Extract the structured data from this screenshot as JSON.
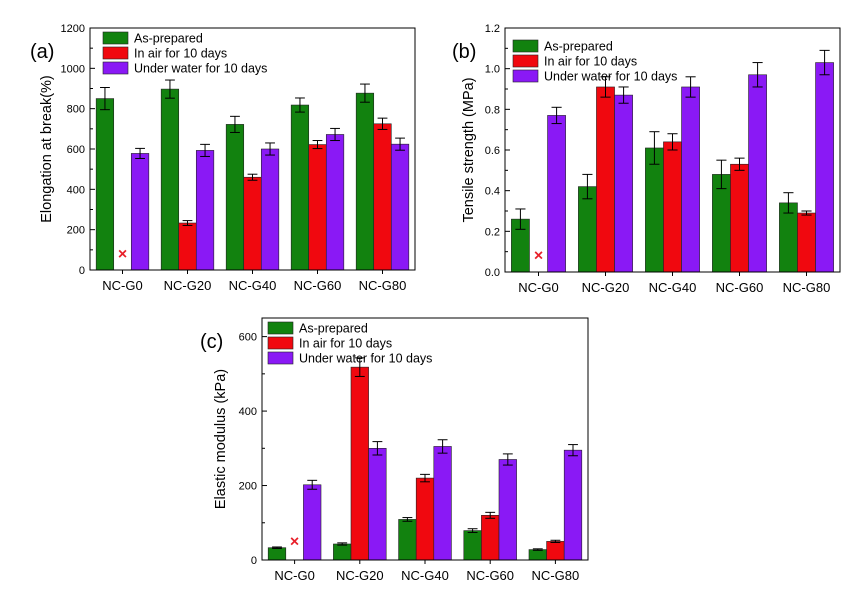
{
  "colors": {
    "as_prepared": "#12820f",
    "in_air": "#f0080f",
    "under_water": "#8a19f5",
    "missing_marker": "#e8202a"
  },
  "legend": [
    "As-prepared",
    "In air for 10 days",
    "Under water for 10 days"
  ],
  "missing_marker_symbol": "×",
  "chart_data": [
    {
      "type": "bar",
      "panel_label": "(a)",
      "ylabel": "Elongation at break(%)",
      "xlabel": "",
      "categories": [
        "NC-G0",
        "NC-G20",
        "NC-G40",
        "NC-G60",
        "NC-G80"
      ],
      "ylim": [
        0,
        1200
      ],
      "yticks": [
        0,
        200,
        400,
        600,
        800,
        1000,
        1200
      ],
      "tick_decimals": 0,
      "legend_position": "top-left",
      "series": [
        {
          "name": "As-prepared",
          "values": [
            850,
            897,
            722,
            818,
            877
          ],
          "errors": [
            55,
            45,
            40,
            35,
            45
          ]
        },
        {
          "name": "In air for 10 days",
          "values": [
            null,
            233,
            460,
            622,
            725
          ],
          "errors": [
            null,
            12,
            15,
            20,
            28
          ]
        },
        {
          "name": "Under water for 10 days",
          "values": [
            578,
            593,
            600,
            672,
            624
          ],
          "errors": [
            25,
            30,
            30,
            30,
            30
          ]
        }
      ],
      "missing_markers": [
        {
          "series": 1,
          "category": 0,
          "y": 80
        }
      ]
    },
    {
      "type": "bar",
      "panel_label": "(b)",
      "ylabel": "Tensile strength (MPa)",
      "xlabel": "",
      "categories": [
        "NC-G0",
        "NC-G20",
        "NC-G40",
        "NC-G60",
        "NC-G80"
      ],
      "ylim": [
        0,
        1.2
      ],
      "yticks": [
        0.0,
        0.2,
        0.4,
        0.6,
        0.8,
        1.0,
        1.2
      ],
      "tick_decimals": 1,
      "legend_position": "top-left",
      "series": [
        {
          "name": "As-prepared",
          "values": [
            0.26,
            0.42,
            0.61,
            0.48,
            0.34
          ],
          "errors": [
            0.05,
            0.06,
            0.08,
            0.07,
            0.05
          ]
        },
        {
          "name": "In air for 10 days",
          "values": [
            null,
            0.91,
            0.64,
            0.53,
            0.29
          ],
          "errors": [
            null,
            0.05,
            0.04,
            0.03,
            0.01
          ]
        },
        {
          "name": "Under water for 10 days",
          "values": [
            0.77,
            0.87,
            0.91,
            0.97,
            1.03
          ],
          "errors": [
            0.04,
            0.04,
            0.05,
            0.06,
            0.06
          ]
        }
      ],
      "missing_markers": [
        {
          "series": 1,
          "category": 0,
          "y": 0.08
        }
      ]
    },
    {
      "type": "bar",
      "panel_label": "(c)",
      "ylabel": "Elastic modulus (kPa)",
      "xlabel": "",
      "categories": [
        "NC-G0",
        "NC-G20",
        "NC-G40",
        "NC-G60",
        "NC-G80"
      ],
      "ylim": [
        0,
        650
      ],
      "yticks": [
        0,
        200,
        400,
        600
      ],
      "tick_decimals": 0,
      "legend_position": "top-left",
      "series": [
        {
          "name": "As-prepared",
          "values": [
            33,
            43,
            109,
            79,
            28
          ],
          "errors": [
            2,
            3,
            5,
            5,
            2
          ]
        },
        {
          "name": "In air for 10 days",
          "values": [
            null,
            518,
            220,
            120,
            50
          ],
          "errors": [
            null,
            25,
            10,
            8,
            3
          ]
        },
        {
          "name": "Under water for 10 days",
          "values": [
            202,
            300,
            305,
            270,
            295
          ],
          "errors": [
            12,
            18,
            18,
            15,
            15
          ]
        }
      ],
      "missing_markers": [
        {
          "series": 1,
          "category": 0,
          "y": 50
        }
      ]
    }
  ]
}
